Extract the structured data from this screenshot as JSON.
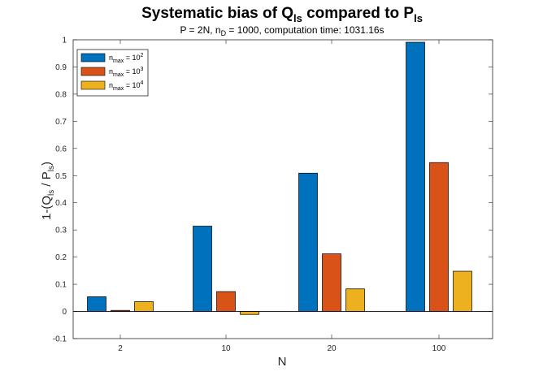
{
  "chart_data": {
    "type": "bar",
    "title": "Systematic bias of Q",
    "title_sub": "ls",
    "title_mid": " compared to P",
    "title_sub2": "ls",
    "subtitle_pre": "P = 2N, n",
    "subtitle_sub": "D",
    "subtitle_post": " = 1000, computation time: 1031.16s",
    "xlabel": "N",
    "ylabel_parts": [
      "1-(Q",
      "ls",
      " / P",
      "ls",
      ")"
    ],
    "categories": [
      "2",
      "10",
      "20",
      "100"
    ],
    "ylim": [
      -0.1,
      1
    ],
    "yticks": [
      "-0.1",
      "0",
      "0.1",
      "0.2",
      "0.3",
      "0.4",
      "0.5",
      "0.6",
      "0.7",
      "0.8",
      "0.9",
      "1"
    ],
    "legend_position": "top-left",
    "series": [
      {
        "name_base": "n",
        "name_sub": "max",
        "name_eq": " = 10",
        "name_sup": "2",
        "color": "#0072BD",
        "values": [
          0.054,
          0.314,
          0.509,
          0.991
        ]
      },
      {
        "name_base": "n",
        "name_sub": "max",
        "name_eq": " = 10",
        "name_sup": "3",
        "color": "#D95319",
        "values": [
          0.004,
          0.073,
          0.212,
          0.548
        ]
      },
      {
        "name_base": "n",
        "name_sub": "max",
        "name_eq": " = 10",
        "name_sup": "4",
        "color": "#EDB120",
        "values": [
          0.036,
          -0.011,
          0.083,
          0.148
        ]
      }
    ]
  }
}
